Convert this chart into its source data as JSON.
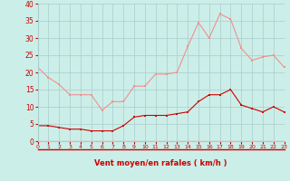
{
  "hours": [
    0,
    1,
    2,
    3,
    4,
    5,
    6,
    7,
    8,
    9,
    10,
    11,
    12,
    13,
    14,
    15,
    16,
    17,
    18,
    19,
    20,
    21,
    22,
    23
  ],
  "wind_avg": [
    4.5,
    4.5,
    4.0,
    3.5,
    3.5,
    3.0,
    3.0,
    3.0,
    4.5,
    7.0,
    7.5,
    7.5,
    7.5,
    8.0,
    8.5,
    11.5,
    13.5,
    13.5,
    15.0,
    10.5,
    9.5,
    8.5,
    10.0,
    8.5
  ],
  "wind_gust": [
    21.5,
    18.5,
    16.5,
    13.5,
    13.5,
    13.5,
    9.0,
    11.5,
    11.5,
    16.0,
    16.0,
    19.5,
    19.5,
    20.0,
    27.5,
    34.5,
    30.0,
    37.0,
    35.5,
    27.0,
    23.5,
    24.5,
    25.0,
    21.5
  ],
  "color_avg": "#cc0000",
  "color_gust": "#f09090",
  "background": "#cceee8",
  "grid_color": "#aacccc",
  "xlabel": "Vent moyen/en rafales ( km/h )",
  "xlabel_color": "#cc0000",
  "tick_color": "#cc0000",
  "ylim": [
    0,
    40
  ],
  "yticks": [
    0,
    5,
    10,
    15,
    20,
    25,
    30,
    35,
    40
  ]
}
